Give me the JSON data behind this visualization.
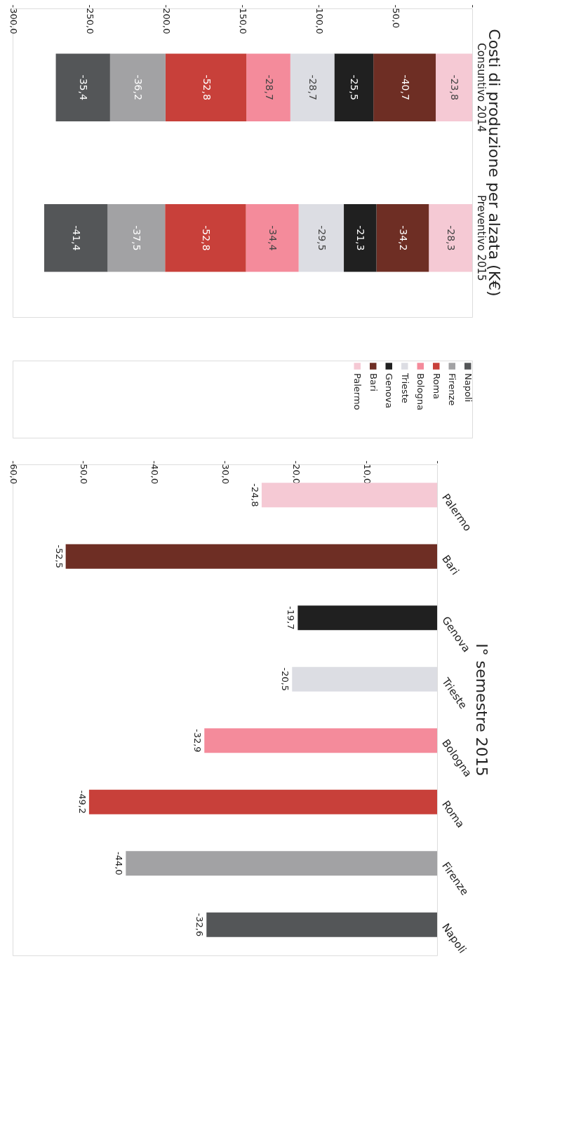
{
  "chart_data": [
    {
      "type": "bar",
      "title": "Costi di produzione per alzata (K€)",
      "orientation": "horizontal",
      "stacked": true,
      "legend": "bottom",
      "grid": false,
      "categories": [
        "Consuntivo 2014",
        "Preventivo 2015"
      ],
      "xlim": [
        -300,
        0
      ],
      "xticks": [
        {
          "value": -300,
          "label": "-300,0"
        },
        {
          "value": -250,
          "label": "-250,0"
        },
        {
          "value": -200,
          "label": "-200,0"
        },
        {
          "value": -150,
          "label": "-150,0"
        },
        {
          "value": -100,
          "label": "-100,0"
        },
        {
          "value": -50,
          "label": "-50,0"
        },
        {
          "value": 0,
          "label": "-"
        }
      ],
      "series": [
        {
          "name": "Palermo",
          "color": "#f5c9d4",
          "values": [
            -23.8,
            -28.3
          ],
          "value_labels": [
            "-23,8",
            "-28,3"
          ]
        },
        {
          "name": "Bari",
          "color": "#6e2e24",
          "values": [
            -40.7,
            -34.2
          ],
          "value_labels": [
            "-40,7",
            "-34,2"
          ]
        },
        {
          "name": "Genova",
          "color": "#202020",
          "values": [
            -25.5,
            -21.3
          ],
          "value_labels": [
            "-25,5",
            "-21,3"
          ]
        },
        {
          "name": "Trieste",
          "color": "#dcdde3",
          "values": [
            -28.7,
            -29.5
          ],
          "value_labels": [
            "-28,7",
            "-29,5"
          ]
        },
        {
          "name": "Bologna",
          "color": "#f48b9b",
          "values": [
            -28.7,
            -34.4
          ],
          "value_labels": [
            "-28,7",
            "-34,4"
          ]
        },
        {
          "name": "Roma",
          "color": "#c8403a",
          "values": [
            -52.8,
            -52.8
          ],
          "value_labels": [
            "-52,8",
            "-52,8"
          ]
        },
        {
          "name": "Firenze",
          "color": "#a2a2a4",
          "values": [
            -36.2,
            -37.5
          ],
          "value_labels": [
            "-36,2",
            "-37,5"
          ]
        },
        {
          "name": "Napoli",
          "color": "#545658",
          "values": [
            -35.4,
            -41.4
          ],
          "value_labels": [
            "-35,4",
            "-41,4"
          ]
        }
      ]
    },
    {
      "type": "bar",
      "title": "I° semestre 2015",
      "orientation": "horizontal",
      "grid": false,
      "categories": [
        "Palermo",
        "Bari",
        "Genova",
        "Trieste",
        "Bologna",
        "Roma",
        "Firenze",
        "Napoli"
      ],
      "xlim": [
        -60,
        0
      ],
      "xticks": [
        {
          "value": -60,
          "label": "-60,0"
        },
        {
          "value": -50,
          "label": "-50,0"
        },
        {
          "value": -40,
          "label": "-40,0"
        },
        {
          "value": -30,
          "label": "-30,0"
        },
        {
          "value": -20,
          "label": "-20,0"
        },
        {
          "value": -10,
          "label": "-10,0"
        },
        {
          "value": 0,
          "label": "-"
        }
      ],
      "values": [
        -24.8,
        -52.5,
        -19.7,
        -20.5,
        -32.9,
        -49.2,
        -44.0,
        -32.6
      ],
      "value_labels": [
        "-24,8",
        "-52,5",
        "-19,7",
        "-20,5",
        "-32,9",
        "-49,2",
        "-44,0",
        "-32,6"
      ],
      "colors": [
        "#f5c9d4",
        "#6e2e24",
        "#202020",
        "#dcdde3",
        "#f48b9b",
        "#c8403a",
        "#a2a2a4",
        "#545658"
      ]
    }
  ]
}
